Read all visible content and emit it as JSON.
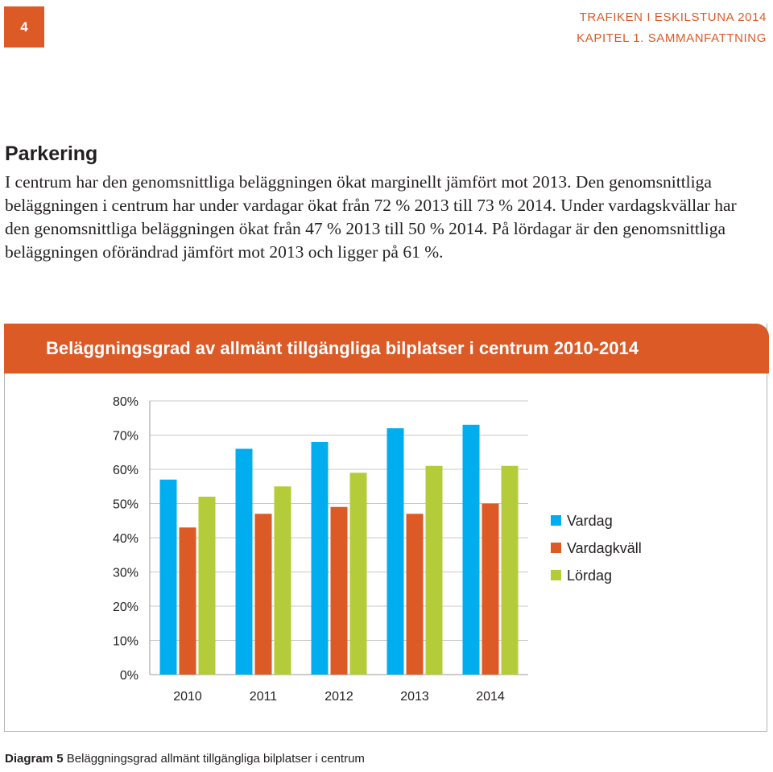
{
  "page": {
    "number": "4",
    "header_line1": "TRAFIKEN I ESKILSTUNA 2014",
    "header_line2": "KAPITEL 1. SAMMANFATTNING"
  },
  "section": {
    "title": "Parkering",
    "paragraph": "I centrum har den genomsnittliga beläggningen ökat marginellt jämfört mot 2013. Den genomsnittliga beläggningen i centrum har under vardagar ökat från 72 % 2013 till 73 % 2014. Under vardagskvällar har den genomsnittliga beläggningen ökat från 47 % 2013 till 50 % 2014. På lördagar är den genomsnittliga beläggningen oförändrad jämfört mot 2013 och ligger på 61 %."
  },
  "chart_data": {
    "type": "bar",
    "title": "Beläggningsgrad av allmänt tillgängliga bilplatser i centrum 2010-2014",
    "categories": [
      "2010",
      "2011",
      "2012",
      "2013",
      "2014"
    ],
    "series": [
      {
        "name": "Vardag",
        "color": "#00aeef",
        "values": [
          57,
          66,
          68,
          72,
          73
        ]
      },
      {
        "name": "Vardagkväll",
        "color": "#db5a26",
        "values": [
          43,
          47,
          49,
          47,
          50
        ]
      },
      {
        "name": "Lördag",
        "color": "#b5cc3a",
        "values": [
          52,
          55,
          59,
          61,
          61
        ]
      }
    ],
    "ylim": [
      0,
      80
    ],
    "yticks": [
      0,
      10,
      20,
      30,
      40,
      50,
      60,
      70,
      80
    ],
    "ytick_labels": [
      "0%",
      "10%",
      "20%",
      "30%",
      "40%",
      "50%",
      "60%",
      "70%",
      "80%"
    ],
    "grid": true,
    "legend_position": "right"
  },
  "caption": {
    "label": "Diagram 5",
    "text": "Beläggningsgrad allmänt tillgängliga bilplatser i centrum"
  }
}
